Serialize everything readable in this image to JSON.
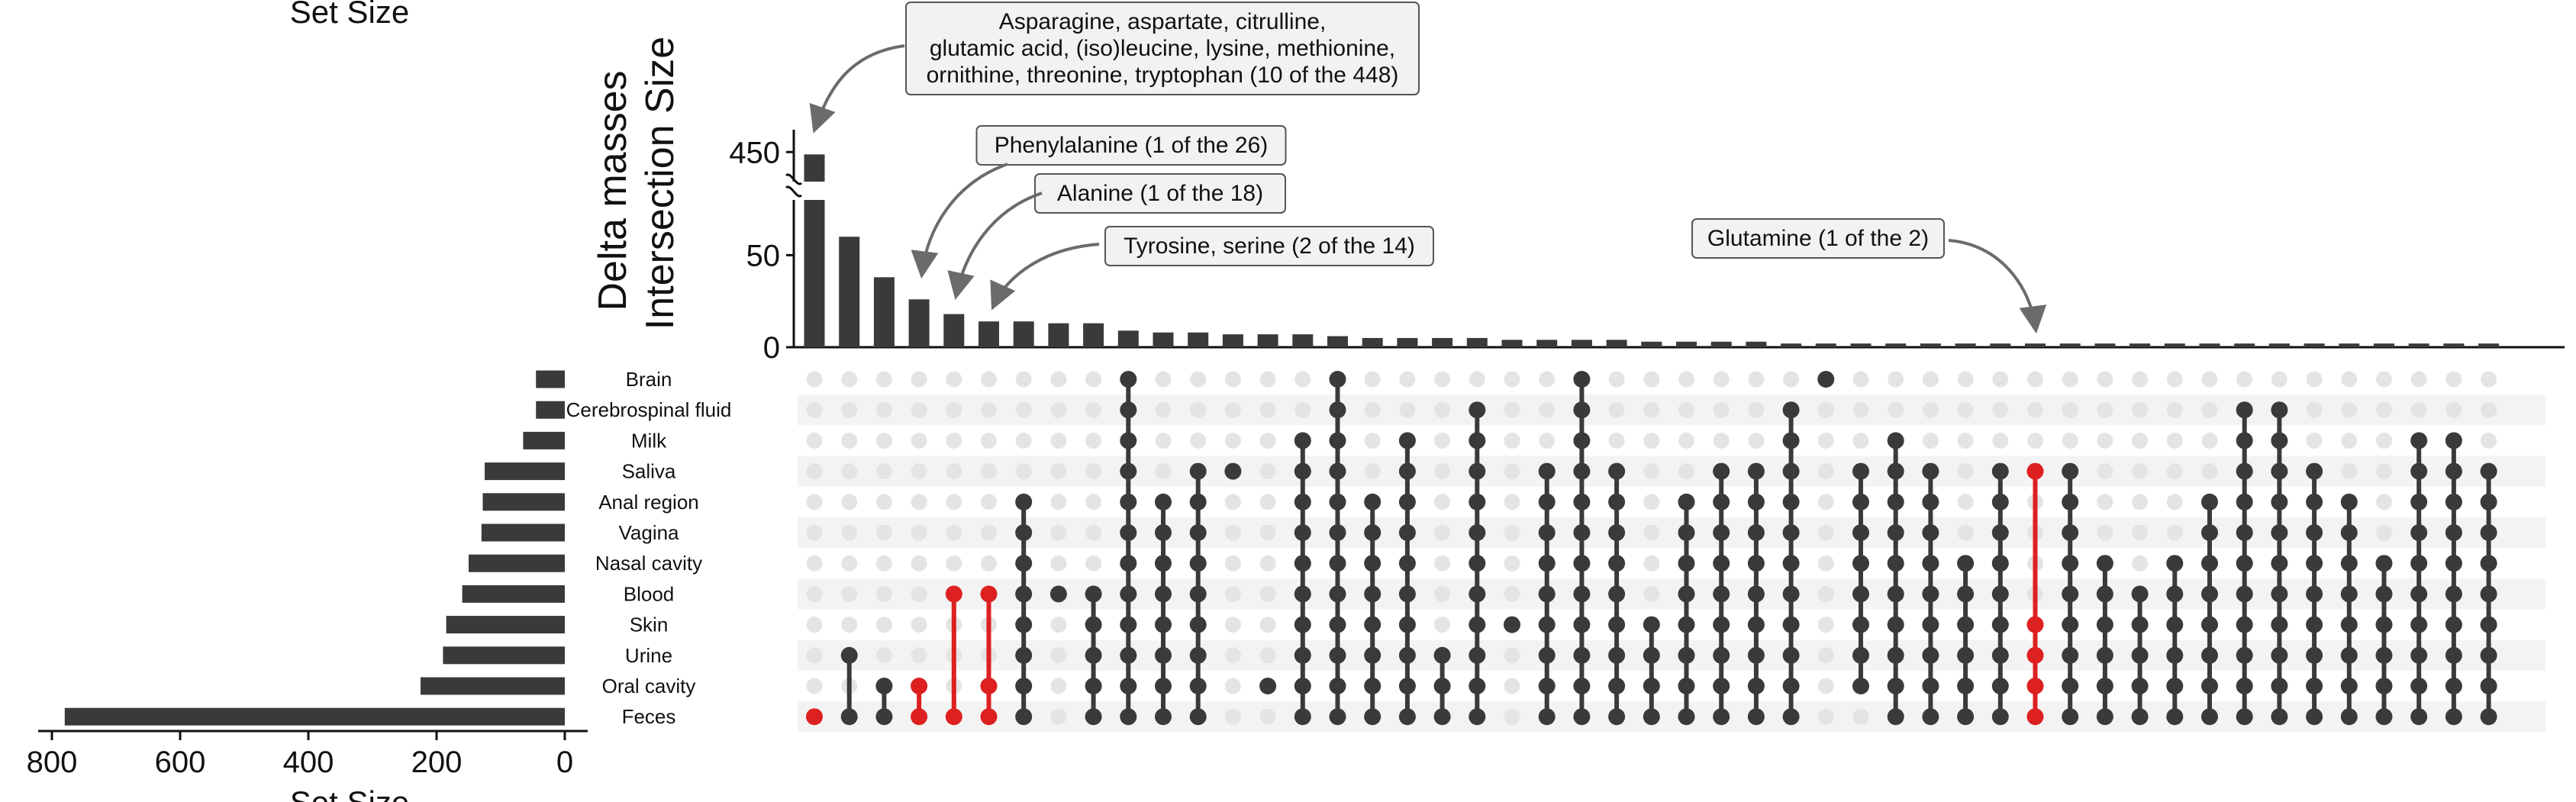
{
  "chart_data": {
    "type": "upset",
    "set_size_title": "Set Size",
    "intersection_title_lines": [
      "Delta masses",
      "Intersection Size"
    ],
    "bar_color": "#3a3a3a",
    "highlight_color": "#dd2020",
    "dot_inactive_color": "#e4e4e4",
    "sets": [
      "Brain",
      "Cerebrospinal fluid",
      "Milk",
      "Saliva",
      "Anal region",
      "Vagina",
      "Nasal cavity",
      "Blood",
      "Skin",
      "Urine",
      "Oral cavity",
      "Feces"
    ],
    "set_sizes": [
      45,
      45,
      65,
      125,
      128,
      130,
      150,
      160,
      185,
      190,
      225,
      780
    ],
    "set_size_axis": {
      "ticks": [
        800,
        600,
        400,
        200,
        0
      ]
    },
    "intersection_axis": {
      "ticks": [
        "0",
        "50",
        "450"
      ],
      "broken": true,
      "lower_max": 80,
      "upper_min": 425,
      "upper_max": 465
    },
    "intersections": [
      {
        "size": 448,
        "sets": [
          "Feces"
        ],
        "highlight": true
      },
      {
        "size": 60,
        "sets": [
          "Urine",
          "Feces"
        ]
      },
      {
        "size": 38,
        "sets": [
          "Oral cavity",
          "Feces"
        ]
      },
      {
        "size": 26,
        "sets": [
          "Oral cavity",
          "Feces"
        ],
        "highlight": true
      },
      {
        "size": 18,
        "sets": [
          "Blood",
          "Feces"
        ],
        "highlight": true
      },
      {
        "size": 14,
        "sets": [
          "Blood",
          "Oral cavity",
          "Feces"
        ],
        "highlight": true
      },
      {
        "size": 14,
        "sets": [
          "Anal region",
          "Vagina",
          "Nasal cavity",
          "Blood",
          "Skin",
          "Urine",
          "Oral cavity",
          "Feces"
        ]
      },
      {
        "size": 13,
        "sets": [
          "Blood"
        ]
      },
      {
        "size": 13,
        "sets": [
          "Blood",
          "Skin",
          "Urine",
          "Oral cavity",
          "Feces"
        ]
      },
      {
        "size": 9,
        "sets": [
          "Brain",
          "Cerebrospinal fluid",
          "Milk",
          "Saliva",
          "Anal region",
          "Vagina",
          "Nasal cavity",
          "Blood",
          "Skin",
          "Urine",
          "Oral cavity",
          "Feces"
        ]
      },
      {
        "size": 8,
        "sets": [
          "Anal region",
          "Vagina",
          "Nasal cavity",
          "Blood",
          "Skin",
          "Urine",
          "Oral cavity",
          "Feces"
        ]
      },
      {
        "size": 8,
        "sets": [
          "Saliva",
          "Anal region",
          "Vagina",
          "Nasal cavity",
          "Blood",
          "Skin",
          "Urine",
          "Oral cavity",
          "Feces"
        ]
      },
      {
        "size": 7,
        "sets": [
          "Saliva"
        ]
      },
      {
        "size": 7,
        "sets": [
          "Oral cavity"
        ]
      },
      {
        "size": 7,
        "sets": [
          "Milk",
          "Saliva",
          "Anal region",
          "Vagina",
          "Nasal cavity",
          "Blood",
          "Skin",
          "Urine",
          "Oral cavity",
          "Feces"
        ]
      },
      {
        "size": 6,
        "sets": [
          "Brain",
          "Cerebrospinal fluid",
          "Milk",
          "Saliva",
          "Anal region",
          "Vagina",
          "Nasal cavity",
          "Blood",
          "Skin",
          "Urine",
          "Oral cavity",
          "Feces"
        ]
      },
      {
        "size": 5,
        "sets": [
          "Anal region",
          "Vagina",
          "Nasal cavity",
          "Blood",
          "Skin",
          "Urine",
          "Oral cavity",
          "Feces"
        ]
      },
      {
        "size": 5,
        "sets": [
          "Milk",
          "Saliva",
          "Anal region",
          "Vagina",
          "Nasal cavity",
          "Blood",
          "Skin",
          "Urine",
          "Oral cavity",
          "Feces"
        ]
      },
      {
        "size": 5,
        "sets": [
          "Urine",
          "Oral cavity",
          "Feces"
        ]
      },
      {
        "size": 5,
        "sets": [
          "Cerebrospinal fluid",
          "Milk",
          "Saliva",
          "Anal region",
          "Vagina",
          "Nasal cavity",
          "Blood",
          "Skin",
          "Urine",
          "Oral cavity",
          "Feces"
        ]
      },
      {
        "size": 4,
        "sets": [
          "Skin"
        ]
      },
      {
        "size": 4,
        "sets": [
          "Saliva",
          "Anal region",
          "Vagina",
          "Nasal cavity",
          "Blood",
          "Skin",
          "Urine",
          "Oral cavity",
          "Feces"
        ]
      },
      {
        "size": 4,
        "sets": [
          "Brain",
          "Cerebrospinal fluid",
          "Milk",
          "Saliva",
          "Anal region",
          "Vagina",
          "Nasal cavity",
          "Blood",
          "Skin",
          "Urine",
          "Oral cavity",
          "Feces"
        ]
      },
      {
        "size": 4,
        "sets": [
          "Saliva",
          "Anal region",
          "Vagina",
          "Nasal cavity",
          "Blood",
          "Skin",
          "Urine",
          "Oral cavity",
          "Feces"
        ]
      },
      {
        "size": 3,
        "sets": [
          "Skin",
          "Urine",
          "Oral cavity",
          "Feces"
        ]
      },
      {
        "size": 3,
        "sets": [
          "Anal region",
          "Vagina",
          "Nasal cavity",
          "Blood",
          "Skin",
          "Urine",
          "Oral cavity",
          "Feces"
        ]
      },
      {
        "size": 3,
        "sets": [
          "Saliva",
          "Anal region",
          "Vagina",
          "Nasal cavity",
          "Blood",
          "Skin",
          "Urine",
          "Oral cavity",
          "Feces"
        ]
      },
      {
        "size": 3,
        "sets": [
          "Saliva",
          "Anal region",
          "Vagina",
          "Nasal cavity",
          "Blood",
          "Skin",
          "Urine",
          "Oral cavity",
          "Feces"
        ]
      },
      {
        "size": 2,
        "sets": [
          "Cerebrospinal fluid",
          "Milk",
          "Saliva",
          "Anal region",
          "Vagina",
          "Nasal cavity",
          "Blood",
          "Skin",
          "Urine",
          "Oral cavity",
          "Feces"
        ]
      },
      {
        "size": 2,
        "sets": [
          "Brain"
        ]
      },
      {
        "size": 2,
        "sets": [
          "Saliva",
          "Anal region",
          "Vagina",
          "Nasal cavity",
          "Blood",
          "Skin",
          "Urine",
          "Oral cavity"
        ]
      },
      {
        "size": 2,
        "sets": [
          "Milk",
          "Saliva",
          "Anal region",
          "Vagina",
          "Nasal cavity",
          "Blood",
          "Skin",
          "Urine",
          "Oral cavity",
          "Feces"
        ]
      },
      {
        "size": 2,
        "sets": [
          "Saliva",
          "Anal region",
          "Vagina",
          "Nasal cavity",
          "Blood",
          "Skin",
          "Urine",
          "Oral cavity",
          "Feces"
        ]
      },
      {
        "size": 2,
        "sets": [
          "Nasal cavity",
          "Blood",
          "Skin",
          "Urine",
          "Oral cavity",
          "Feces"
        ]
      },
      {
        "size": 2,
        "sets": [
          "Saliva",
          "Anal region",
          "Vagina",
          "Nasal cavity",
          "Blood",
          "Skin",
          "Urine",
          "Oral cavity",
          "Feces"
        ]
      },
      {
        "size": 2,
        "sets": [
          "Saliva",
          "Skin",
          "Urine",
          "Oral cavity",
          "Feces"
        ],
        "highlight": true
      },
      {
        "size": 2,
        "sets": [
          "Saliva",
          "Anal region",
          "Vagina",
          "Nasal cavity",
          "Blood",
          "Skin",
          "Urine",
          "Oral cavity",
          "Feces"
        ]
      },
      {
        "size": 2,
        "sets": [
          "Nasal cavity",
          "Blood",
          "Skin",
          "Urine",
          "Oral cavity",
          "Feces"
        ]
      },
      {
        "size": 2,
        "sets": [
          "Blood",
          "Skin",
          "Urine",
          "Oral cavity",
          "Feces"
        ]
      },
      {
        "size": 2,
        "sets": [
          "Nasal cavity",
          "Blood",
          "Skin",
          "Urine",
          "Oral cavity",
          "Feces"
        ]
      },
      {
        "size": 2,
        "sets": [
          "Anal region",
          "Vagina",
          "Nasal cavity",
          "Blood",
          "Skin",
          "Urine",
          "Oral cavity",
          "Feces"
        ]
      },
      {
        "size": 2,
        "sets": [
          "Cerebrospinal fluid",
          "Milk",
          "Saliva",
          "Anal region",
          "Vagina",
          "Nasal cavity",
          "Blood",
          "Skin",
          "Urine",
          "Oral cavity",
          "Feces"
        ]
      },
      {
        "size": 2,
        "sets": [
          "Cerebrospinal fluid",
          "Milk",
          "Saliva",
          "Anal region",
          "Vagina",
          "Nasal cavity",
          "Blood",
          "Skin",
          "Urine",
          "Oral cavity",
          "Feces"
        ]
      },
      {
        "size": 2,
        "sets": [
          "Saliva",
          "Anal region",
          "Vagina",
          "Nasal cavity",
          "Blood",
          "Skin",
          "Urine",
          "Oral cavity",
          "Feces"
        ]
      },
      {
        "size": 2,
        "sets": [
          "Anal region",
          "Vagina",
          "Nasal cavity",
          "Blood",
          "Skin",
          "Urine",
          "Oral cavity",
          "Feces"
        ]
      },
      {
        "size": 2,
        "sets": [
          "Nasal cavity",
          "Blood",
          "Skin",
          "Urine",
          "Oral cavity",
          "Feces"
        ]
      },
      {
        "size": 2,
        "sets": [
          "Milk",
          "Saliva",
          "Anal region",
          "Vagina",
          "Nasal cavity",
          "Blood",
          "Skin",
          "Urine",
          "Oral cavity",
          "Feces"
        ]
      },
      {
        "size": 2,
        "sets": [
          "Milk",
          "Saliva",
          "Anal region",
          "Vagina",
          "Nasal cavity",
          "Blood",
          "Skin",
          "Urine",
          "Oral cavity",
          "Feces"
        ]
      },
      {
        "size": 2,
        "sets": [
          "Saliva",
          "Anal region",
          "Vagina",
          "Nasal cavity",
          "Blood",
          "Skin",
          "Urine",
          "Oral cavity",
          "Feces"
        ]
      }
    ],
    "annotations": [
      {
        "lines": [
          "Asparagine, aspartate, citrulline,",
          "glutamic acid, (iso)leucine, lysine, methionine,",
          "ornithine, threonine, tryptophan (10 of the 448)"
        ],
        "target": 0
      },
      {
        "lines": [
          "Phenylalanine (1 of the 26)"
        ],
        "target": 3
      },
      {
        "lines": [
          "Alanine (1 of the 18)"
        ],
        "target": 4
      },
      {
        "lines": [
          "Tyrosine, serine (2 of the 14)"
        ],
        "target": 5
      },
      {
        "lines": [
          "Glutamine (1 of the 2)"
        ],
        "target": 35
      }
    ]
  }
}
